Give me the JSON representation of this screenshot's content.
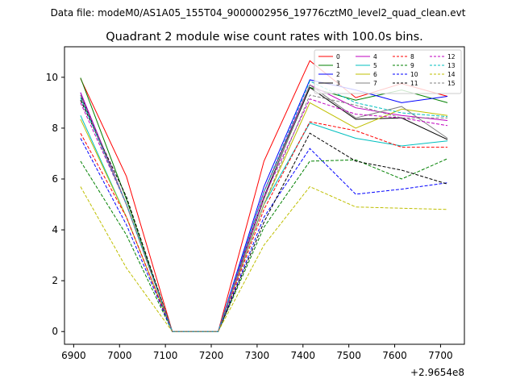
{
  "figure": {
    "suptitle": "Data file: modeM0/AS1A05_155T04_9000002956_19776cztM0_level2_quad_clean.evt"
  },
  "chart_data": {
    "type": "line",
    "title": "Quadrant 2 module wise count rates with 100.0s bins.",
    "xlabel": "",
    "ylabel": "",
    "x_offset_label": "+2.9654e8",
    "x": [
      6915,
      7015,
      7115,
      7215,
      7315,
      7415,
      7515,
      7615,
      7715
    ],
    "xlim": [
      6880,
      7752
    ],
    "ylim": [
      -0.5,
      11.2
    ],
    "xticks": [
      "6900",
      "7000",
      "7100",
      "7200",
      "7300",
      "7400",
      "7500",
      "7600",
      "7700"
    ],
    "yticks": [
      "0",
      "2",
      "4",
      "6",
      "8",
      "10"
    ],
    "grid": false,
    "legend": {
      "location": "upper right",
      "columns": 4
    },
    "series": [
      {
        "name": "0",
        "color": "#ff0000",
        "dash": "solid",
        "values": [
          9.95,
          6.1,
          0,
          0,
          6.7,
          10.65,
          9.2,
          9.75,
          9.25
        ]
      },
      {
        "name": "1",
        "color": "#008000",
        "dash": "solid",
        "values": [
          9.98,
          5.2,
          0,
          0,
          5.5,
          9.6,
          9.1,
          9.5,
          9.0
        ]
      },
      {
        "name": "2",
        "color": "#0000ff",
        "dash": "solid",
        "values": [
          9.4,
          5.0,
          0,
          0,
          5.7,
          9.9,
          9.5,
          9.0,
          9.25
        ]
      },
      {
        "name": "3",
        "color": "#000000",
        "dash": "solid",
        "values": [
          9.3,
          5.0,
          0,
          0,
          5.3,
          9.6,
          8.35,
          8.4,
          7.55
        ]
      },
      {
        "name": "4",
        "color": "#bf00bf",
        "dash": "solid",
        "values": [
          9.4,
          5.0,
          0,
          0,
          5.5,
          9.7,
          8.8,
          8.5,
          8.3
        ]
      },
      {
        "name": "5",
        "color": "#00bfbf",
        "dash": "solid",
        "values": [
          8.5,
          4.5,
          0,
          0,
          5.0,
          8.2,
          7.6,
          7.3,
          7.5
        ]
      },
      {
        "name": "6",
        "color": "#bfbf00",
        "dash": "solid",
        "values": [
          8.35,
          4.5,
          0,
          0,
          5.0,
          9.0,
          8.0,
          8.75,
          8.5
        ]
      },
      {
        "name": "7",
        "color": "#808080",
        "dash": "solid",
        "values": [
          9.2,
          5.0,
          0,
          0,
          5.2,
          9.7,
          8.4,
          8.85,
          7.6
        ]
      },
      {
        "name": "8",
        "color": "#ff0000",
        "dash": "dashed",
        "values": [
          7.8,
          4.5,
          0,
          0,
          4.8,
          8.25,
          7.9,
          7.25,
          7.25
        ]
      },
      {
        "name": "9",
        "color": "#008000",
        "dash": "dashed",
        "values": [
          6.7,
          3.8,
          0,
          0,
          4.1,
          6.7,
          6.75,
          6.0,
          6.8
        ]
      },
      {
        "name": "10",
        "color": "#0000ff",
        "dash": "dashed",
        "values": [
          7.6,
          4.2,
          0,
          0,
          4.5,
          7.2,
          5.4,
          5.6,
          5.85
        ]
      },
      {
        "name": "11",
        "color": "#000000",
        "dash": "dashed",
        "values": [
          9.1,
          5.3,
          0,
          0,
          4.3,
          7.8,
          6.7,
          6.35,
          5.8
        ]
      },
      {
        "name": "12",
        "color": "#bf00bf",
        "dash": "dashed",
        "values": [
          9.0,
          5.0,
          0,
          0,
          5.3,
          9.15,
          8.55,
          8.4,
          8.1
        ]
      },
      {
        "name": "13",
        "color": "#00bfbf",
        "dash": "dashed",
        "values": [
          9.2,
          5.0,
          0,
          0,
          5.5,
          9.85,
          9.0,
          8.6,
          8.45
        ]
      },
      {
        "name": "14",
        "color": "#bfbf00",
        "dash": "dashed",
        "values": [
          5.7,
          2.5,
          0,
          0,
          3.4,
          5.7,
          4.9,
          4.85,
          4.8
        ]
      },
      {
        "name": "15",
        "color": "#808080",
        "dash": "dashed",
        "values": [
          9.3,
          5.0,
          0,
          0,
          5.0,
          9.3,
          8.9,
          8.4,
          8.4
        ]
      }
    ]
  }
}
